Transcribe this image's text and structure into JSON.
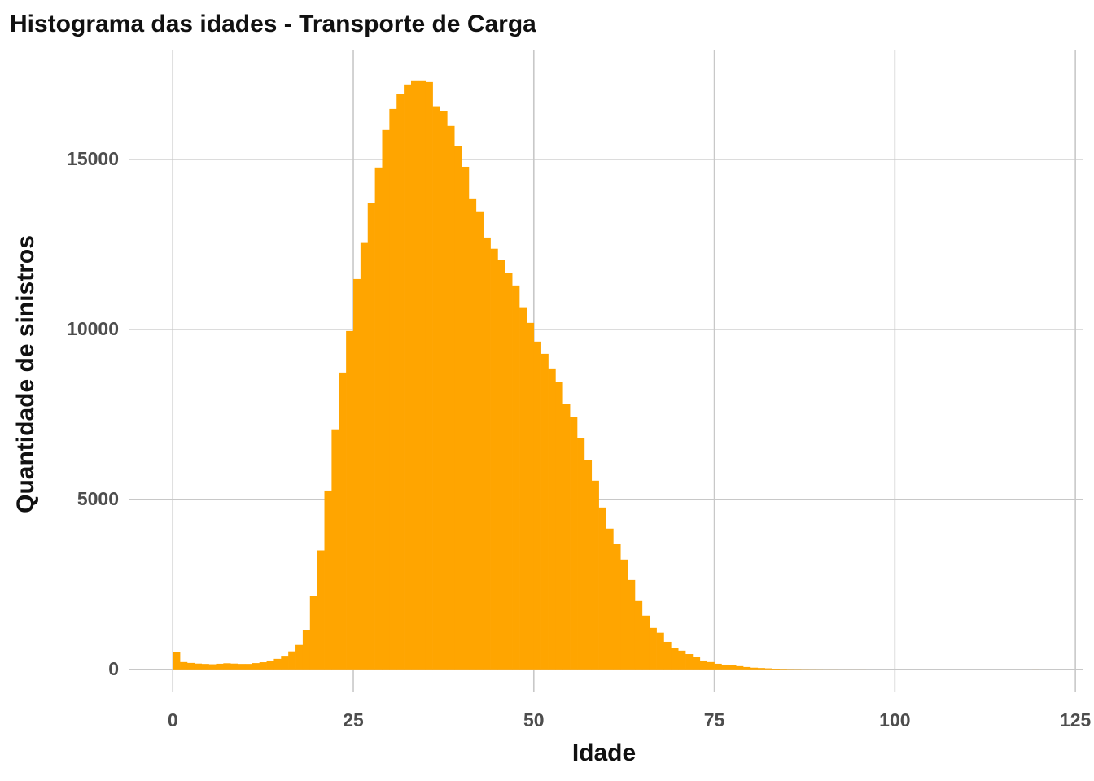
{
  "chart_data": {
    "type": "histogram",
    "title": "Histograma das idades - Transporte de Carga",
    "x_label": "Idade",
    "y_label": "Quantidade de sinistros",
    "color": "#FFA500",
    "grid": true,
    "bins": [
      0,
      1,
      2,
      3,
      4,
      5,
      6,
      7,
      8,
      9,
      10,
      11,
      12,
      13,
      14,
      15,
      16,
      17,
      18,
      19,
      20,
      21,
      22,
      23,
      24,
      25,
      26,
      27,
      28,
      29,
      30,
      31,
      32,
      33,
      34,
      35,
      36,
      37,
      38,
      39,
      40,
      41,
      42,
      43,
      44,
      45,
      46,
      47,
      48,
      49,
      50,
      51,
      52,
      53,
      54,
      55,
      56,
      57,
      58,
      59,
      60,
      61,
      62,
      63,
      64,
      65,
      66,
      67,
      68,
      69,
      70,
      71,
      72,
      73,
      74,
      75,
      76,
      77,
      78,
      79,
      80,
      81,
      82,
      83,
      84,
      85,
      86,
      87,
      88,
      89,
      90,
      91,
      92,
      93,
      94,
      95,
      96,
      97,
      98,
      99,
      100,
      101,
      102,
      103,
      104,
      105,
      106,
      107,
      108,
      109,
      110,
      111,
      112,
      113,
      114,
      115,
      116,
      117,
      118,
      119,
      120
    ],
    "values": [
      500,
      215,
      190,
      170,
      160,
      150,
      165,
      180,
      170,
      160,
      160,
      185,
      210,
      260,
      310,
      400,
      530,
      720,
      1150,
      2150,
      3500,
      5260,
      7060,
      8730,
      9950,
      11480,
      12540,
      13710,
      14760,
      15860,
      16480,
      16910,
      17200,
      17320,
      17320,
      17270,
      16560,
      16410,
      15980,
      15380,
      14780,
      13850,
      13470,
      12700,
      12370,
      12030,
      11650,
      11290,
      10650,
      10190,
      9640,
      9280,
      8850,
      8440,
      7800,
      7420,
      6790,
      6150,
      5550,
      4760,
      4140,
      3680,
      3230,
      2630,
      2010,
      1580,
      1220,
      1080,
      810,
      620,
      550,
      450,
      360,
      260,
      215,
      165,
      140,
      120,
      95,
      70,
      50,
      40,
      30,
      20,
      15,
      10,
      8,
      5,
      4,
      3,
      2,
      2,
      1,
      1,
      1,
      1,
      0,
      0,
      0,
      0,
      0,
      0,
      0,
      0,
      0,
      0,
      0,
      0,
      0,
      0,
      0,
      0,
      0,
      0,
      0,
      0,
      0,
      0,
      0,
      1
    ],
    "xlim": [
      -6,
      126
    ],
    "ylim": [
      -650,
      18200
    ],
    "xticks": [
      0,
      25,
      50,
      75,
      100,
      125
    ],
    "yticks": [
      0,
      5000,
      10000,
      15000
    ]
  }
}
